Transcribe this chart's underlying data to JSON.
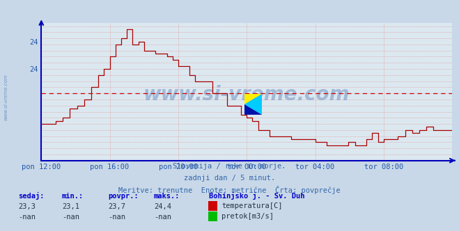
{
  "title": "Bohinjsko j. - Sv. Duh",
  "bg_color": "#c8d8e8",
  "plot_bg_color": "#dce8f0",
  "grid_color_h": "#ff8888",
  "grid_color_v": "#cc8888",
  "axis_color": "#0000bb",
  "line_color": "#aa0000",
  "avg_color": "#cc0000",
  "avg_value": 23.7,
  "ymin": 22.6,
  "ymax": 24.85,
  "ytick_positions": [
    24.1,
    24.55
  ],
  "ytick_labels": [
    "24",
    "24"
  ],
  "x_labels": [
    "pon 12:00",
    "pon 16:00",
    "pon 20:00",
    "tor 00:00",
    "tor 04:00",
    "tor 08:00"
  ],
  "subtitle1": "Slovenija / reke in morje.",
  "subtitle2": "zadnji dan / 5 minut.",
  "subtitle3": "Meritve: trenutne  Enote: metrične  Črta: povprečje",
  "stats_labels": [
    "sedaj:",
    "min.:",
    "povpr.:",
    "maks.:"
  ],
  "stats_temp": [
    "23,3",
    "23,1",
    "23,7",
    "24,4"
  ],
  "stats_flow": [
    "-nan",
    "-nan",
    "-nan",
    "-nan"
  ],
  "legend_station": "Bohinjsko j. - Sv. Duh",
  "legend_temp": "temperatura[C]",
  "legend_flow": "pretok[m3/s]",
  "temp_color": "#cc0000",
  "flow_color": "#00bb00",
  "n_points": 289
}
